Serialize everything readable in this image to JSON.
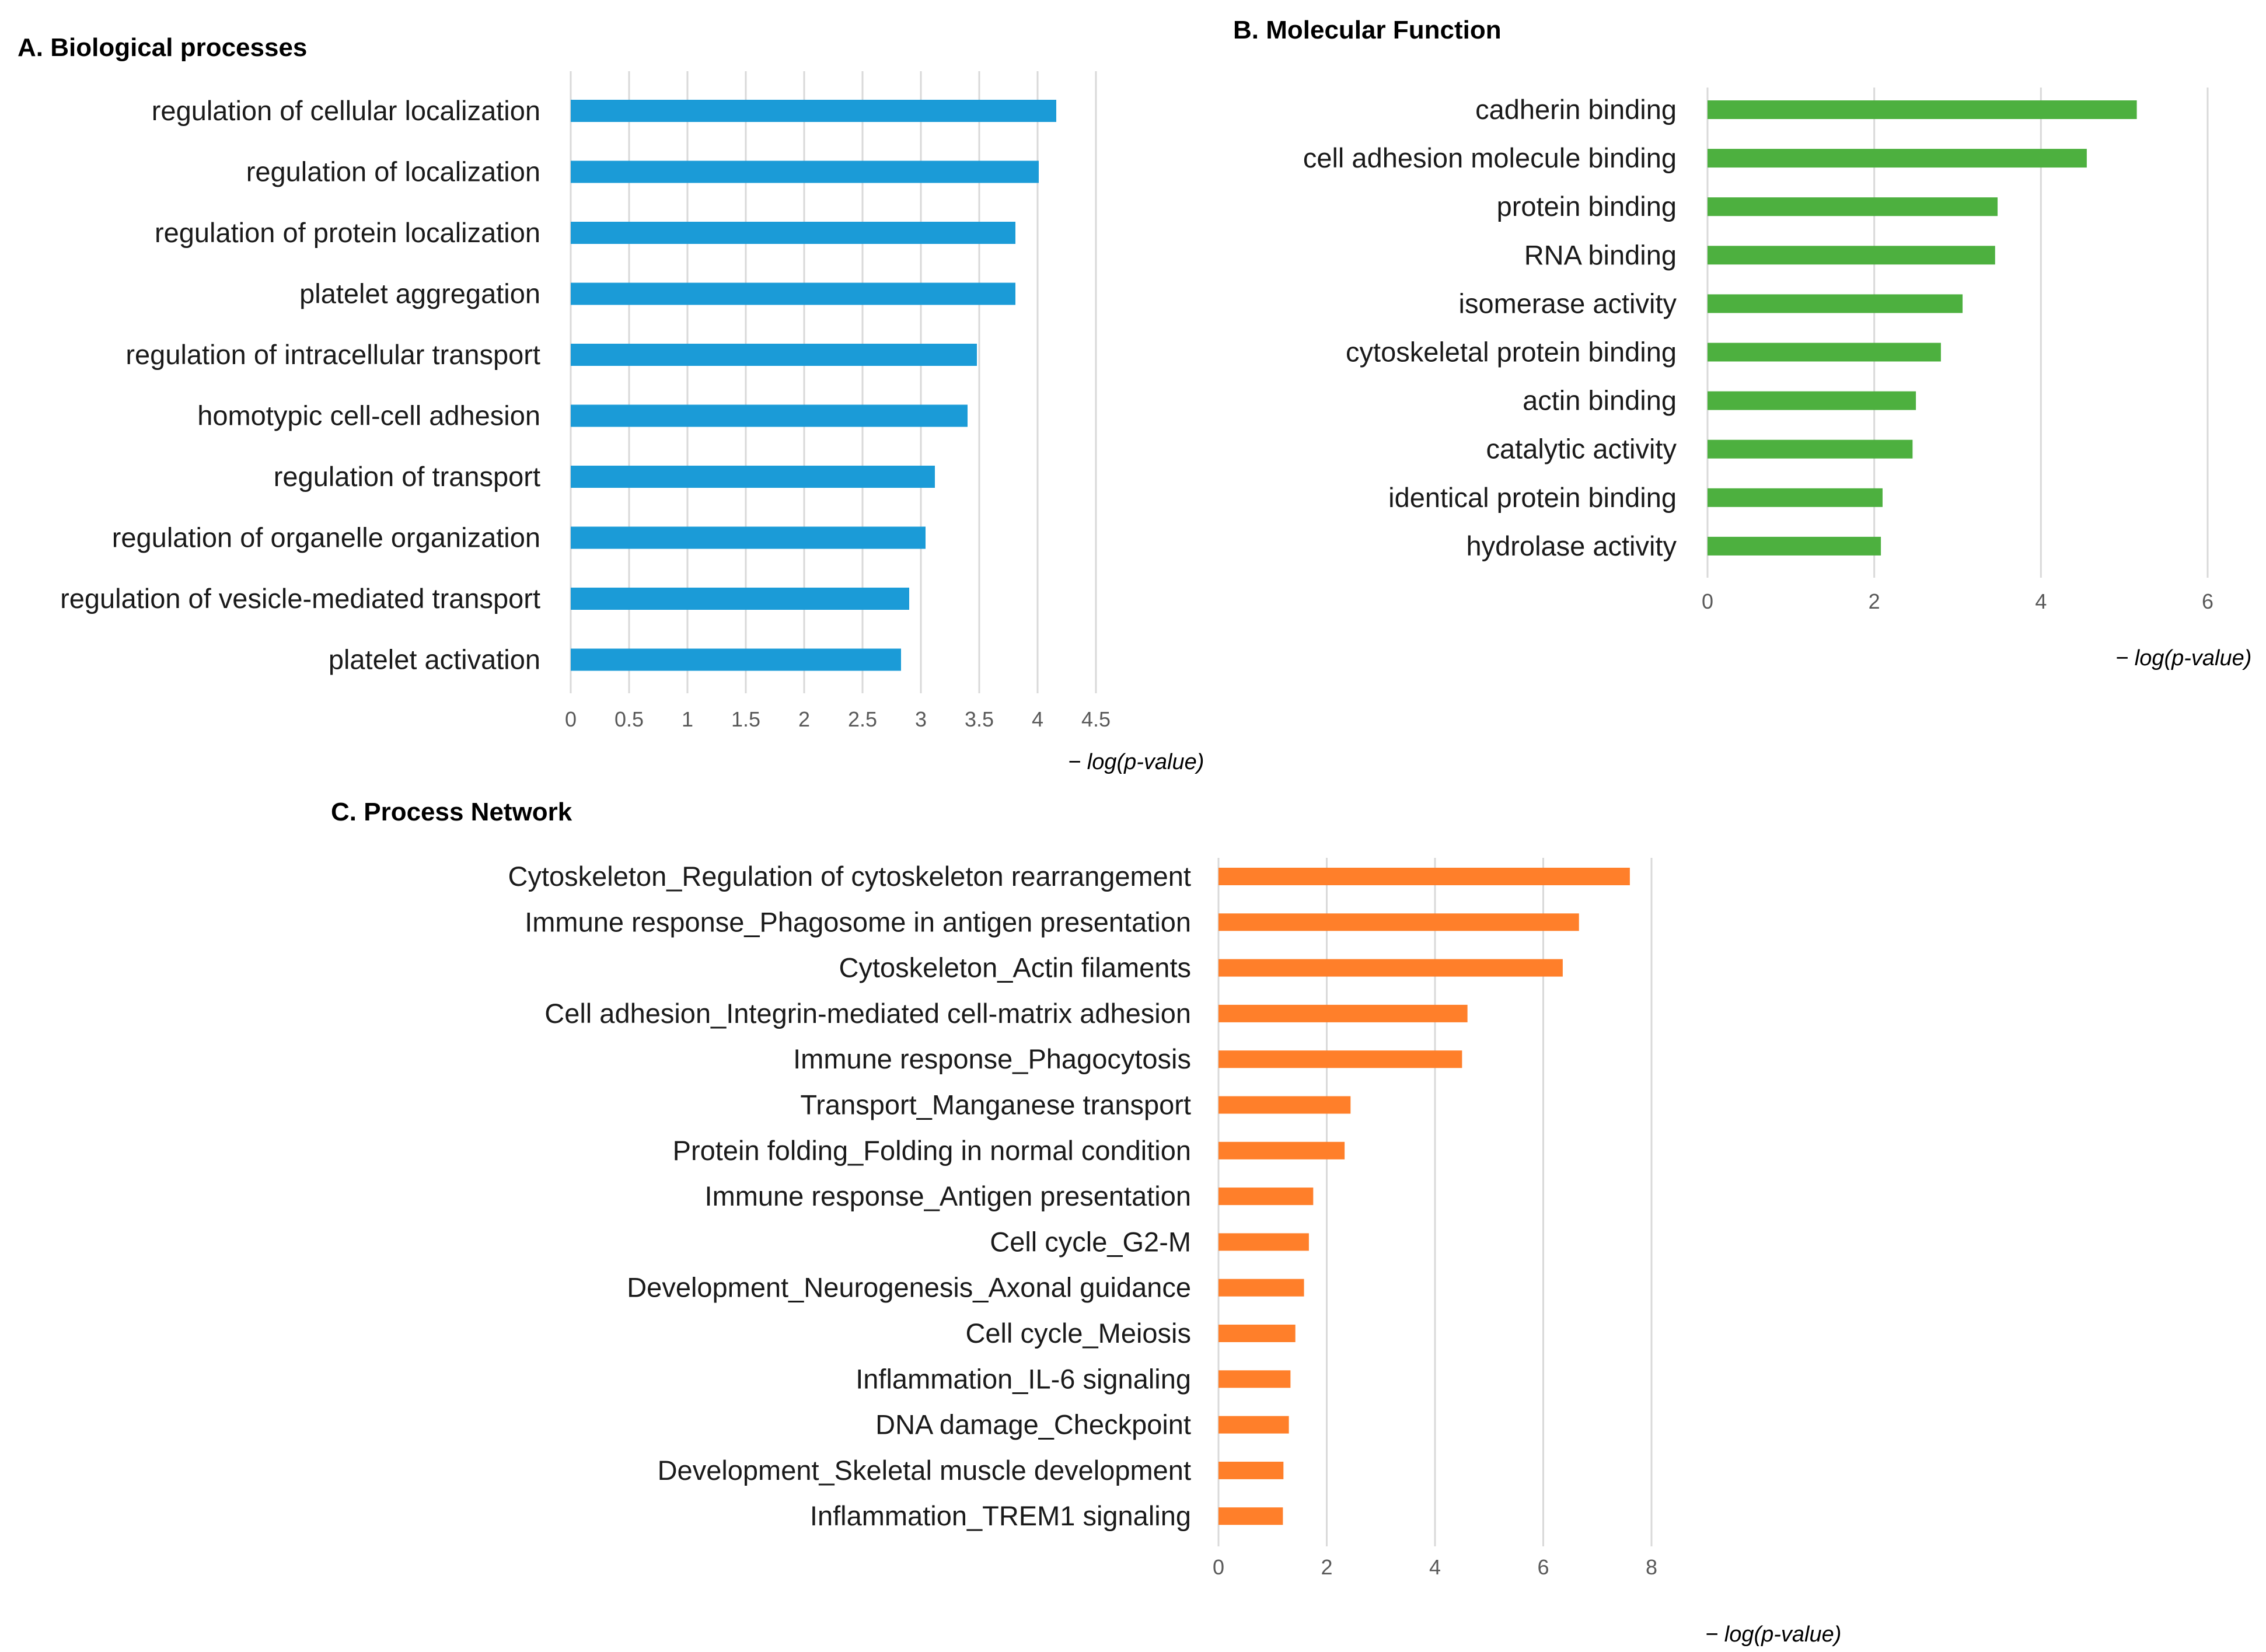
{
  "chart_data": [
    {
      "type": "bar",
      "orientation": "horizontal",
      "title": "A. Biological processes",
      "xlabel": "− log(p-value)",
      "ylabel": "",
      "xlim": [
        0,
        4.5
      ],
      "ticks": [
        "0",
        "0.5",
        "1",
        "1.5",
        "2",
        "2.5",
        "3",
        "3.5",
        "4",
        "4.5"
      ],
      "tick_values": [
        0,
        0.5,
        1,
        1.5,
        2,
        2.5,
        3,
        3.5,
        4,
        4.5
      ],
      "grid": true,
      "color": "#1B9BD7",
      "categories": [
        "regulation of cellular localization",
        "regulation of localization",
        "regulation of protein localization",
        "platelet aggregation",
        "regulation of intracellular transport",
        "homotypic cell-cell adhesion",
        "regulation of transport",
        "regulation of organelle organization",
        "regulation of vesicle-mediated transport",
        "platelet activation"
      ],
      "values": [
        4.16,
        4.01,
        3.81,
        3.81,
        3.48,
        3.4,
        3.12,
        3.04,
        2.9,
        2.83
      ]
    },
    {
      "type": "bar",
      "orientation": "horizontal",
      "title": "B. Molecular Function",
      "xlabel": "− log(p-value)",
      "ylabel": "",
      "xlim": [
        0,
        6
      ],
      "ticks": [
        "0",
        "2",
        "4",
        "6"
      ],
      "tick_values": [
        0,
        2,
        4,
        6
      ],
      "grid": true,
      "color": "#4DB03F",
      "categories": [
        "cadherin binding",
        "cell adhesion molecule binding",
        "protein binding",
        "RNA binding",
        "isomerase activity",
        "cytoskeletal protein binding",
        "actin binding",
        "catalytic activity",
        "identical protein binding",
        "hydrolase activity"
      ],
      "values": [
        5.15,
        4.55,
        3.48,
        3.45,
        3.06,
        2.8,
        2.5,
        2.46,
        2.1,
        2.08
      ]
    },
    {
      "type": "bar",
      "orientation": "horizontal",
      "title": "C. Process Network",
      "xlabel": "− log(p-value)",
      "ylabel": "",
      "xlim": [
        0,
        8
      ],
      "ticks": [
        "0",
        "2",
        "4",
        "6",
        "8"
      ],
      "tick_values": [
        0,
        2,
        4,
        6,
        8
      ],
      "grid": true,
      "color": "#FF7F2A",
      "categories": [
        "Cytoskeleton_Regulation of cytoskeleton rearrangement",
        "Immune response_Phagosome in antigen presentation",
        "Cytoskeleton_Actin filaments",
        "Cell adhesion_Integrin-mediated cell-matrix adhesion",
        "Immune response_Phagocytosis",
        "Transport_Manganese transport",
        "Protein folding_Folding in normal condition",
        "Immune response_Antigen presentation",
        "Cell cycle_G2-M",
        "Development_Neurogenesis_Axonal guidance",
        "Cell cycle_Meiosis",
        "Inflammation_IL-6 signaling",
        "DNA damage_Checkpoint",
        "Development_Skeletal muscle development",
        "Inflammation_TREM1 signaling"
      ],
      "values": [
        7.6,
        6.66,
        6.36,
        4.6,
        4.5,
        2.44,
        2.33,
        1.75,
        1.67,
        1.58,
        1.42,
        1.33,
        1.3,
        1.2,
        1.19
      ]
    }
  ]
}
